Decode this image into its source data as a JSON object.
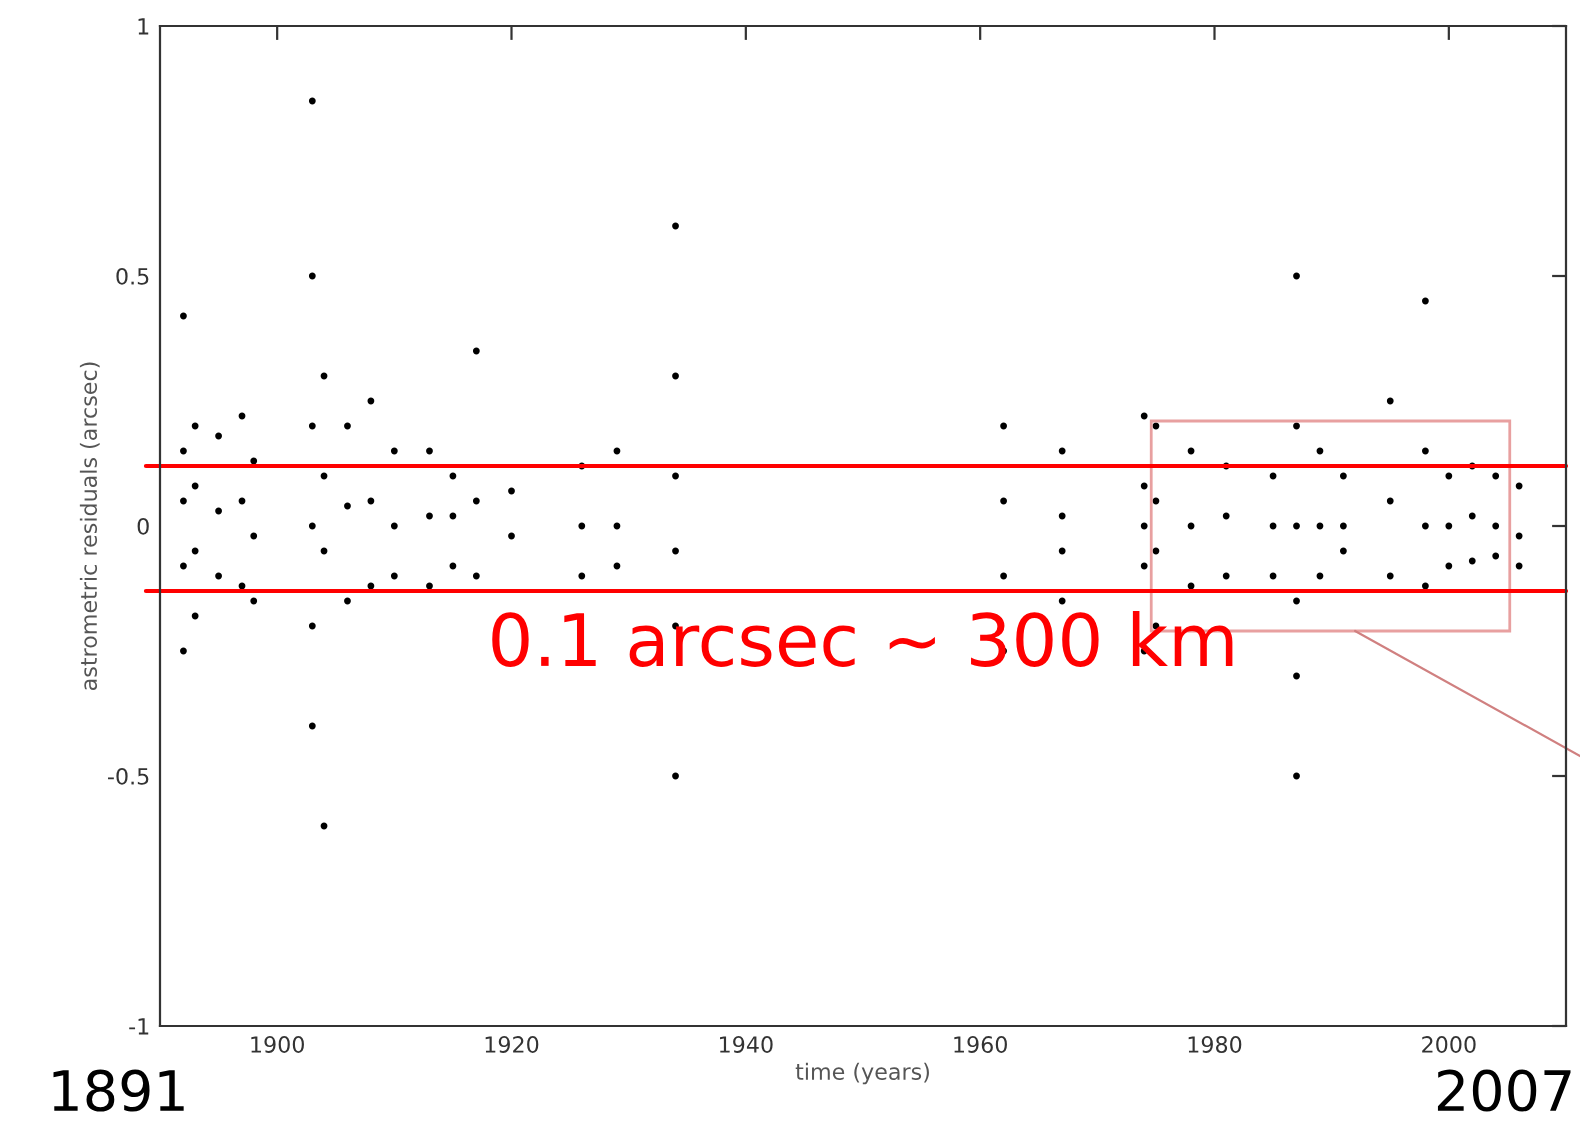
{
  "chart_data": {
    "type": "scatter",
    "xlabel": "time (years)",
    "ylabel": "astrometric residuals (arcsec)",
    "x": [
      1892,
      1892,
      1892,
      1892,
      1892,
      1893,
      1893,
      1893,
      1893,
      1895,
      1895,
      1895,
      1897,
      1897,
      1897,
      1898,
      1898,
      1898,
      1903,
      1903,
      1903,
      1903,
      1903,
      1903,
      1904,
      1904,
      1904,
      1904,
      1906,
      1906,
      1906,
      1908,
      1908,
      1908,
      1910,
      1910,
      1910,
      1913,
      1913,
      1913,
      1915,
      1915,
      1915,
      1917,
      1917,
      1917,
      1920,
      1920,
      1926,
      1926,
      1926,
      1929,
      1929,
      1929,
      1934,
      1934,
      1934,
      1934,
      1934,
      1934,
      1962,
      1962,
      1962,
      1962,
      1967,
      1967,
      1967,
      1967,
      1974,
      1974,
      1974,
      1974,
      1974,
      1975,
      1975,
      1975,
      1975,
      1978,
      1978,
      1978,
      1981,
      1981,
      1981,
      1985,
      1985,
      1985,
      1987,
      1987,
      1987,
      1987,
      1987,
      1987,
      1989,
      1989,
      1989,
      1991,
      1991,
      1991,
      1995,
      1995,
      1995,
      1998,
      1998,
      1998,
      1998,
      2000,
      2000,
      2000,
      2002,
      2002,
      2002,
      2004,
      2004,
      2004,
      2006,
      2006,
      2006
    ],
    "values": [
      0.42,
      0.15,
      0.05,
      -0.08,
      -0.25,
      0.2,
      0.08,
      -0.05,
      -0.18,
      0.18,
      0.03,
      -0.1,
      0.22,
      0.05,
      -0.12,
      0.13,
      -0.02,
      -0.15,
      0.85,
      0.5,
      0.2,
      0.0,
      -0.2,
      -0.4,
      0.3,
      0.1,
      -0.05,
      -0.6,
      0.2,
      0.04,
      -0.15,
      0.25,
      0.05,
      -0.12,
      0.15,
      0.0,
      -0.1,
      0.15,
      0.02,
      -0.12,
      0.1,
      0.02,
      -0.08,
      0.35,
      0.05,
      -0.1,
      0.07,
      -0.02,
      0.12,
      0.0,
      -0.1,
      0.15,
      0.0,
      -0.08,
      0.6,
      0.3,
      0.1,
      -0.05,
      -0.2,
      -0.5,
      0.2,
      0.05,
      -0.1,
      -0.25,
      0.15,
      0.02,
      -0.05,
      -0.15,
      0.22,
      0.08,
      0.0,
      -0.08,
      -0.25,
      0.2,
      0.05,
      -0.05,
      -0.2,
      0.15,
      0.0,
      -0.12,
      0.12,
      0.02,
      -0.1,
      0.1,
      0.0,
      -0.1,
      0.5,
      0.2,
      0.0,
      -0.15,
      -0.3,
      -0.5,
      0.15,
      0.0,
      -0.1,
      0.1,
      0.0,
      -0.05,
      0.25,
      0.05,
      -0.1,
      0.45,
      0.15,
      0.0,
      -0.12,
      0.1,
      0.0,
      -0.08,
      0.12,
      0.02,
      -0.07,
      0.1,
      0.0,
      -0.06,
      0.08,
      -0.02,
      -0.08
    ],
    "color": "#000000",
    "marker": "circle",
    "xlim": [
      1890,
      2010
    ],
    "xticks": [
      1900,
      1920,
      1940,
      1960,
      1980,
      2000
    ],
    "ylim": [
      -1,
      1
    ],
    "yticks": [
      -1,
      -0.5,
      0,
      0.5,
      1
    ],
    "ref_lines": [
      {
        "axis": "y",
        "value": 0.12,
        "color": "#ff0000"
      },
      {
        "axis": "y",
        "value": -0.13,
        "color": "#ff0000",
        "label": "0.1 arcsec ~ 300 km"
      }
    ],
    "annotations": [
      "1891",
      "2007"
    ],
    "grid": false
  }
}
